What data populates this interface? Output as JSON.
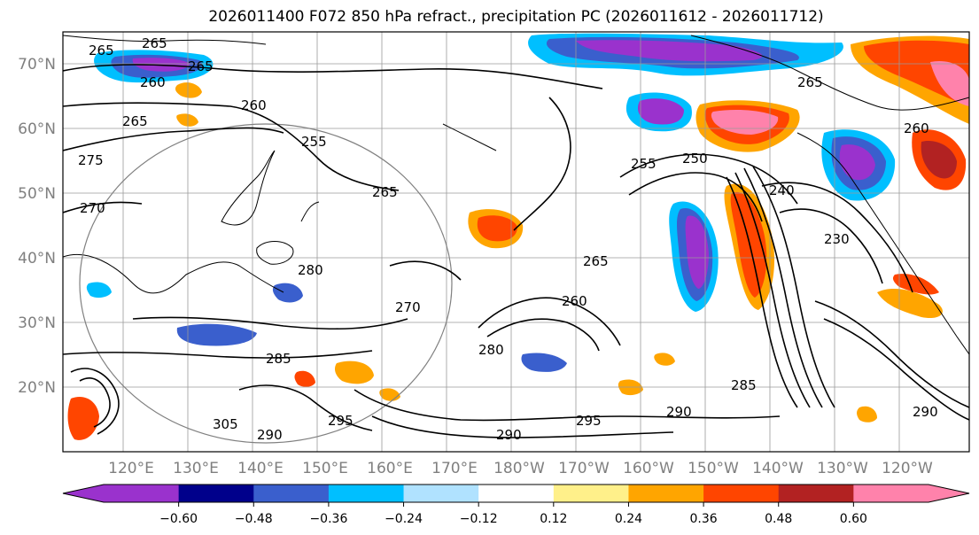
{
  "title": "2026011400 F072 850 hPa refract., precipitation PC (2026011612 - 2026011712)",
  "lat_labels": [
    "70°N",
    "60°N",
    "50°N",
    "40°N",
    "30°N",
    "20°N"
  ],
  "lon_labels": [
    "120°E",
    "130°E",
    "140°E",
    "150°E",
    "160°E",
    "170°E",
    "180°W",
    "170°W",
    "160°W",
    "150°W",
    "140°W",
    "130°W",
    "120°W"
  ],
  "colorbar": {
    "colors": [
      "#9a32cd",
      "#00008b",
      "#3a5fcd",
      "#00bfff",
      "#b0e2ff",
      "#ffffff",
      "#fff08a",
      "#ffa500",
      "#ff8c00",
      "#ff4500",
      "#b22222",
      "#ff82ab"
    ],
    "extend_min_color": "#9a32cd",
    "extend_max_color": "#ff82ab",
    "tick_labels": [
      "−0.60",
      "−0.48",
      "−0.36",
      "−0.24",
      "−0.12",
      "0.12",
      "0.24",
      "0.36",
      "0.48",
      "0.60"
    ]
  },
  "contour_labels": [
    {
      "text": "265"
    },
    {
      "text": "265"
    },
    {
      "text": "265"
    },
    {
      "text": "260"
    },
    {
      "text": "260"
    },
    {
      "text": "265"
    },
    {
      "text": "255"
    },
    {
      "text": "275"
    },
    {
      "text": "270"
    },
    {
      "text": "265"
    },
    {
      "text": "265"
    },
    {
      "text": "280"
    },
    {
      "text": "270"
    },
    {
      "text": "260"
    },
    {
      "text": "280"
    },
    {
      "text": "285"
    },
    {
      "text": "255"
    },
    {
      "text": "250"
    },
    {
      "text": "240"
    },
    {
      "text": "230"
    },
    {
      "text": "285"
    },
    {
      "text": "290"
    },
    {
      "text": "295"
    },
    {
      "text": "290"
    },
    {
      "text": "295"
    },
    {
      "text": "305"
    },
    {
      "text": "290"
    },
    {
      "text": "260"
    },
    {
      "text": "265"
    },
    {
      "text": "290"
    }
  ]
}
